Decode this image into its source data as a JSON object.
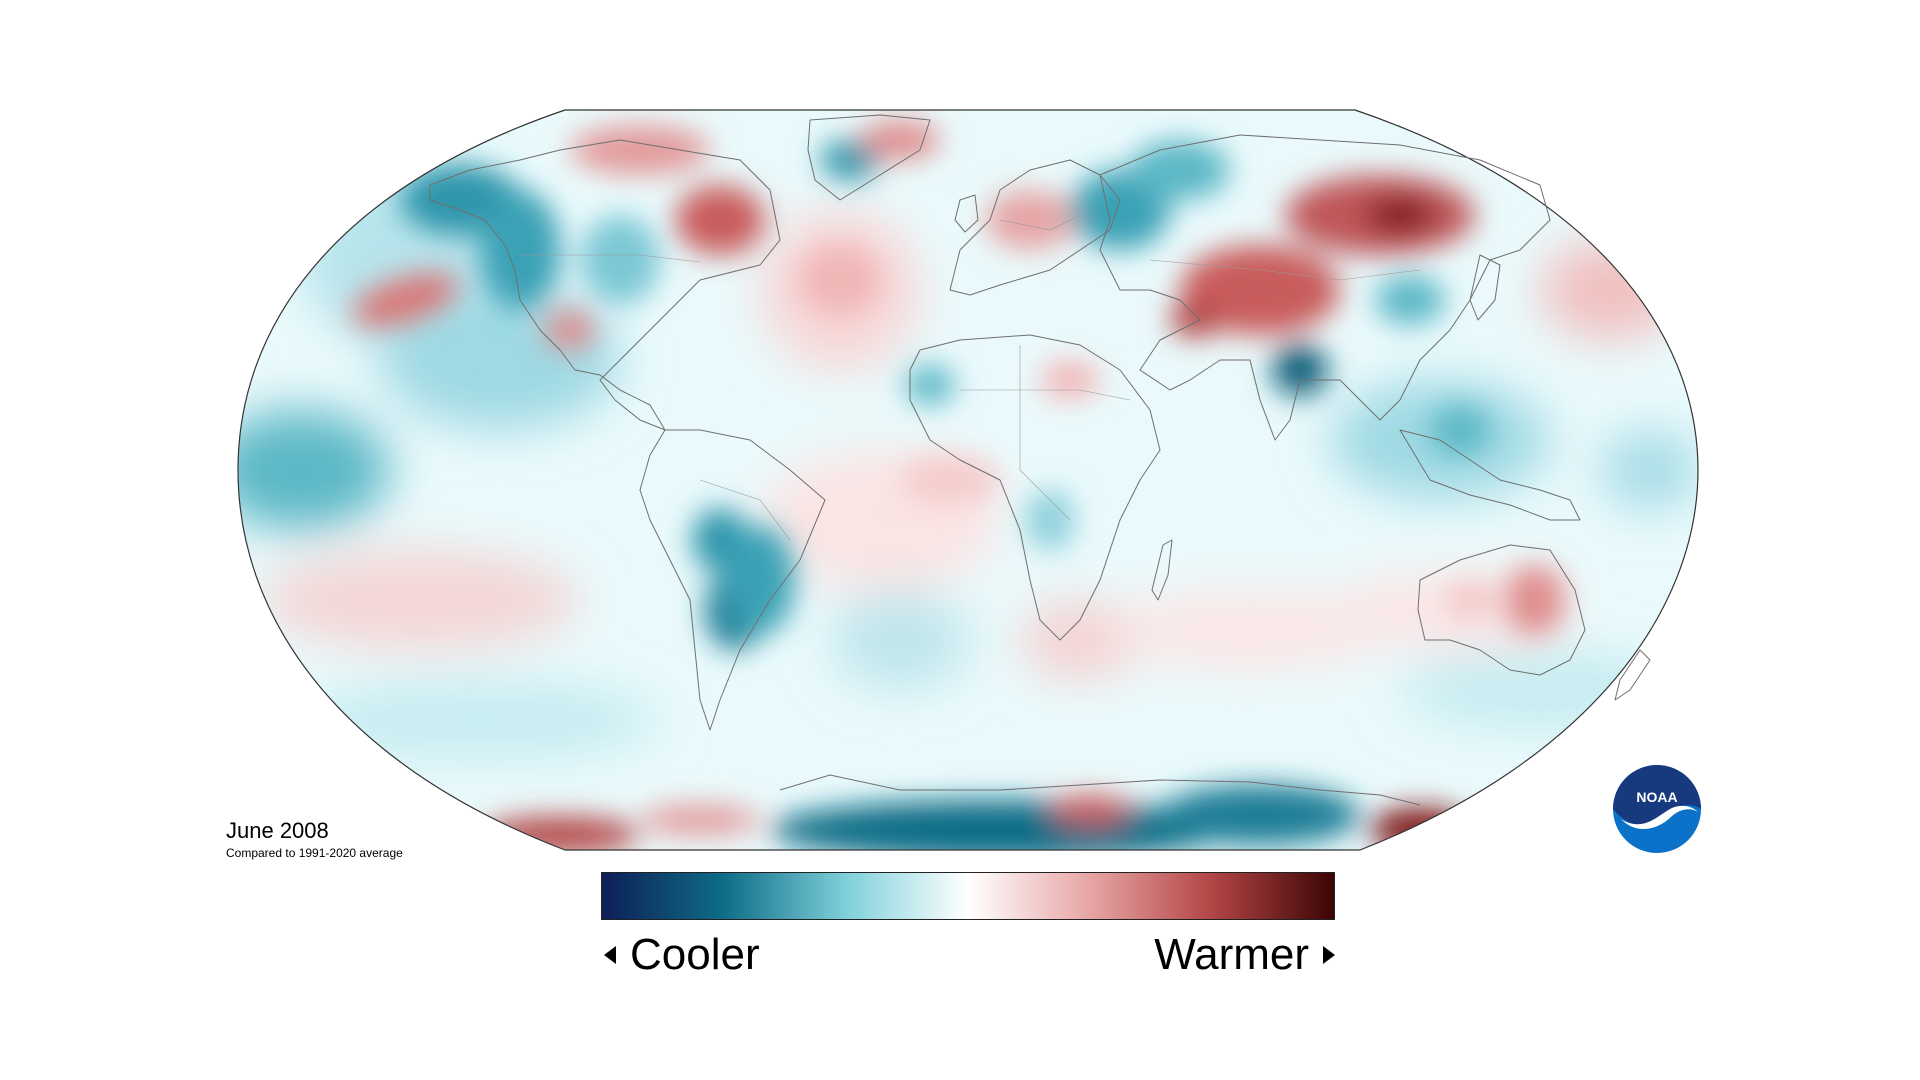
{
  "map": {
    "title": "June 2008",
    "subtitle": "Compared to 1991-2020 average"
  },
  "legend": {
    "cooler_label": "Cooler",
    "warmer_label": "Warmer",
    "colors": [
      "#0d1f57",
      "#0e6d86",
      "#7fd0da",
      "#ffffff",
      "#e7a5a5",
      "#b34545",
      "#3c0505"
    ]
  },
  "logo": {
    "text": "NOAA",
    "icon": "noaa-logo-icon"
  },
  "palette": {
    "cool_strong": "#0f6e86",
    "cool_mid": "#4fb1c2",
    "cool_light": "#bfe9ef",
    "warm_light": "#f5caca",
    "warm_mid": "#d97878",
    "warm_strong": "#8f1a1a",
    "coast": "#6f6f6f"
  }
}
